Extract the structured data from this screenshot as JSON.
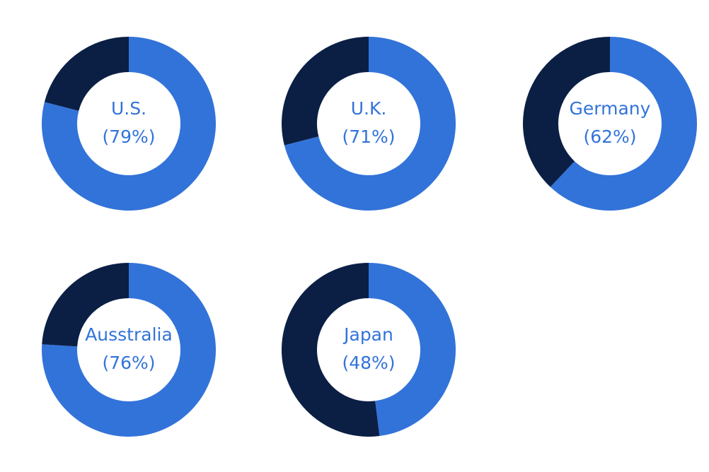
{
  "chart_data": [
    {
      "type": "donut",
      "title": "U.S.",
      "values": [
        79,
        21
      ],
      "value_labels": [
        "(79%)",
        null
      ],
      "colors": [
        "#3273d9",
        "#0b1f45"
      ]
    },
    {
      "type": "donut",
      "title": "U.K.",
      "values": [
        71,
        29
      ],
      "value_labels": [
        "(71%)",
        null
      ],
      "colors": [
        "#3273d9",
        "#0b1f45"
      ]
    },
    {
      "type": "donut",
      "title": "Germany",
      "values": [
        62,
        38
      ],
      "value_labels": [
        "(62%)",
        null
      ],
      "colors": [
        "#3273d9",
        "#0b1f45"
      ]
    },
    {
      "type": "donut",
      "title": "Ausstralia",
      "values": [
        76,
        24
      ],
      "value_labels": [
        "(76%)",
        null
      ],
      "colors": [
        "#3273d9",
        "#0b1f45"
      ]
    },
    {
      "type": "donut",
      "title": "Japan",
      "values": [
        48,
        52
      ],
      "value_labels": [
        "(48%)",
        null
      ],
      "colors": [
        "#3273d9",
        "#0b1f45"
      ]
    }
  ]
}
